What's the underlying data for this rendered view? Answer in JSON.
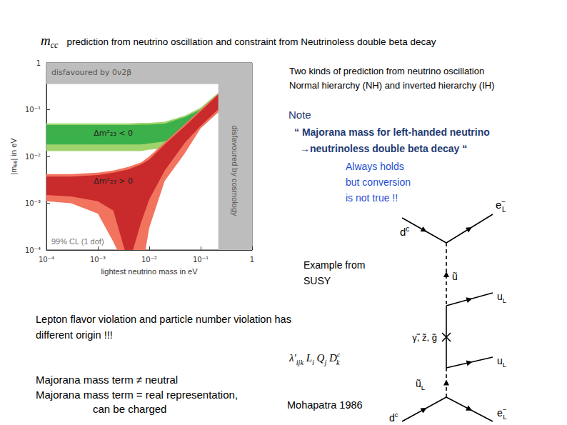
{
  "header": {
    "symbol": {
      "base": "m",
      "sub": "cc"
    },
    "text": "prediction from neutrino oscillation and constraint from Neutrinoless double beta decay"
  },
  "chart_data": {
    "type": "band",
    "x_label": "lightest neutrino mass in eV",
    "y_label": "|mₑₑ| in eV",
    "log": true,
    "grid": false,
    "xlim": [
      0.0001,
      1
    ],
    "ylim": [
      0.0001,
      1
    ],
    "xticks": [
      {
        "value": 0.0001,
        "label": "10⁻⁴"
      },
      {
        "value": 0.001,
        "label": "10⁻³"
      },
      {
        "value": 0.01,
        "label": "10⁻²"
      },
      {
        "value": 0.1,
        "label": "10⁻¹"
      },
      1
    ],
    "yticks": [
      {
        "value": 0.0001,
        "label": "10⁻⁴"
      },
      {
        "value": 0.001,
        "label": "10⁻³"
      },
      {
        "value": 0.01,
        "label": "10⁻²"
      },
      {
        "value": 0.1,
        "label": "10⁻¹"
      },
      1
    ],
    "x": [
      0.0001,
      0.0003,
      0.001,
      0.002,
      0.004,
      0.007,
      0.01,
      0.02,
      0.05,
      0.1,
      0.2,
      0.5,
      1
    ],
    "bands": [
      {
        "label": "Δm²₂₃ < 0",
        "outer": {
          "color": "#9fd36b",
          "lower": [
            0.013,
            0.013,
            0.013,
            0.013,
            0.013,
            0.013,
            0.014,
            0.015,
            0.022,
            0.04,
            0.08,
            0.19,
            0.38
          ],
          "upper": [
            0.051,
            0.051,
            0.051,
            0.051,
            0.051,
            0.052,
            0.052,
            0.055,
            0.075,
            0.11,
            0.21,
            0.5,
            1
          ]
        },
        "inner": {
          "color": "#3cb04a",
          "lower": [
            0.018,
            0.018,
            0.018,
            0.018,
            0.018,
            0.018,
            0.019,
            0.021,
            0.028,
            0.047,
            0.092,
            0.22,
            0.44
          ],
          "upper": [
            0.047,
            0.047,
            0.047,
            0.047,
            0.047,
            0.048,
            0.048,
            0.05,
            0.07,
            0.1,
            0.2,
            0.48,
            0.95
          ]
        }
      },
      {
        "label": "Δm²₂₃ > 0",
        "outer": {
          "color": "#f2735e",
          "lower": [
            0.0011,
            0.001,
            0.0006,
            0.00015,
            3e-05,
            3e-05,
            0.0003,
            0.003,
            0.012,
            0.04,
            0.08,
            0.19,
            0.38
          ],
          "upper": [
            0.0042,
            0.0042,
            0.0045,
            0.005,
            0.006,
            0.0075,
            0.01,
            0.02,
            0.05,
            0.1,
            0.2,
            0.5,
            1
          ]
        },
        "inner": {
          "color": "#c92a2c",
          "lower": [
            0.0015,
            0.0014,
            0.0011,
            0.0007,
            5e-05,
            0.0004,
            0.0012,
            0.005,
            0.02,
            0.045,
            0.092,
            0.22,
            0.44
          ],
          "upper": [
            0.0037,
            0.0037,
            0.004,
            0.0045,
            0.0053,
            0.0068,
            0.0085,
            0.018,
            0.045,
            0.092,
            0.19,
            0.47,
            0.95
          ]
        }
      }
    ],
    "regions": [
      {
        "label": "disfavoured by 0ν2β",
        "color": "#bdbdbd",
        "xlim": [
          0.0001,
          1
        ],
        "ylim": [
          0.35,
          1
        ]
      },
      {
        "label": "disfavoured by cosmology",
        "color": "#bdbdbd",
        "xlim": [
          0.22,
          1
        ],
        "ylim": [
          0.0001,
          1
        ]
      }
    ],
    "annotations": [
      "99% CL (1 dof)"
    ]
  },
  "notes": {
    "intro": [
      "Two kinds of prediction from neutrino oscillation",
      "Normal hierarchy (NH) and inverted hierarchy (IH)"
    ],
    "note_heading": "Note",
    "note_lines": [
      "“ Majorana mass for left-handed neutrino",
      "→neutrinoless double beta decay “"
    ],
    "remark": [
      "Always holds",
      "but conversion",
      "is not true !!"
    ],
    "example": [
      "Example from",
      "SUSY"
    ],
    "conclusion": [
      "Lepton flavor violation and particle number violation has",
      "different origin !!!"
    ],
    "majorana": [
      "Majorana mass term ≠ neutral",
      "Majorana mass term = real representation,",
      "can be charged"
    ],
    "reference": "Mohapatra  1986"
  },
  "formula": [
    {
      "base": "λ'",
      "sub": "ijk"
    },
    {
      "base": "L",
      "sub": "i"
    },
    {
      "base": "Q",
      "sub": "j"
    },
    {
      "base": "D",
      "sup": "c",
      "sub": "k"
    }
  ],
  "diagram": {
    "labels": [
      {
        "base": "d",
        "sup": "c"
      },
      {
        "base": "e",
        "sup": "−",
        "sub": "L"
      },
      {
        "base": "ũ"
      },
      {
        "base": "u",
        "sub": "L"
      },
      {
        "base": "γ̃, z̃, g̃"
      },
      {
        "base": "u",
        "sub": "L"
      },
      {
        "base": "ũ",
        "sub": "L"
      },
      {
        "base": "d",
        "sup": "c"
      },
      {
        "base": "e",
        "sup": "−",
        "sub": "L"
      }
    ]
  }
}
